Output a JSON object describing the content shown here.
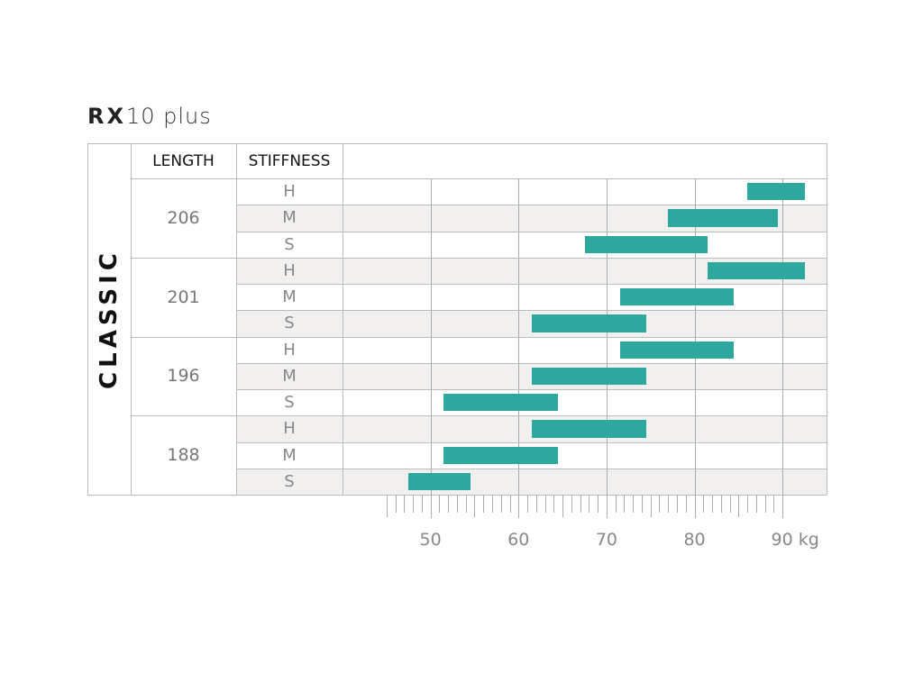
{
  "chart_data": {
    "type": "bar",
    "orientation": "horizontal-range",
    "title_bold": "RX",
    "title_rest": "10 plus",
    "series_label": "CLASSIC",
    "columns": {
      "length": "LENGTH",
      "stiffness": "STIFFNESS"
    },
    "x_unit": "kg",
    "xlim": [
      40,
      95
    ],
    "x_ticks": [
      50,
      60,
      70,
      80,
      90
    ],
    "x_tick_labels": [
      "50",
      "60",
      "70",
      "80",
      "90 kg"
    ],
    "minor_tick_range": [
      45,
      89
    ],
    "groups": [
      {
        "length": "206",
        "rows": [
          {
            "stiffness": "H",
            "min": 86,
            "max": 92.5
          },
          {
            "stiffness": "M",
            "min": 77,
            "max": 89.5
          },
          {
            "stiffness": "S",
            "min": 67.5,
            "max": 81.5
          }
        ]
      },
      {
        "length": "201",
        "rows": [
          {
            "stiffness": "H",
            "min": 81.5,
            "max": 92.5
          },
          {
            "stiffness": "M",
            "min": 71.5,
            "max": 84.5
          },
          {
            "stiffness": "S",
            "min": 61.5,
            "max": 74.5
          }
        ]
      },
      {
        "length": "196",
        "rows": [
          {
            "stiffness": "H",
            "min": 71.5,
            "max": 84.5
          },
          {
            "stiffness": "M",
            "min": 61.5,
            "max": 74.5
          },
          {
            "stiffness": "S",
            "min": 51.5,
            "max": 64.5
          }
        ]
      },
      {
        "length": "188",
        "rows": [
          {
            "stiffness": "H",
            "min": 61.5,
            "max": 74.5
          },
          {
            "stiffness": "M",
            "min": 51.5,
            "max": 64.5
          },
          {
            "stiffness": "S",
            "min": 47.5,
            "max": 54.5
          }
        ]
      }
    ],
    "colors": {
      "bar": "#2ea89f",
      "shade": "#f1f0ef",
      "grid": "#bbbbbb"
    }
  }
}
